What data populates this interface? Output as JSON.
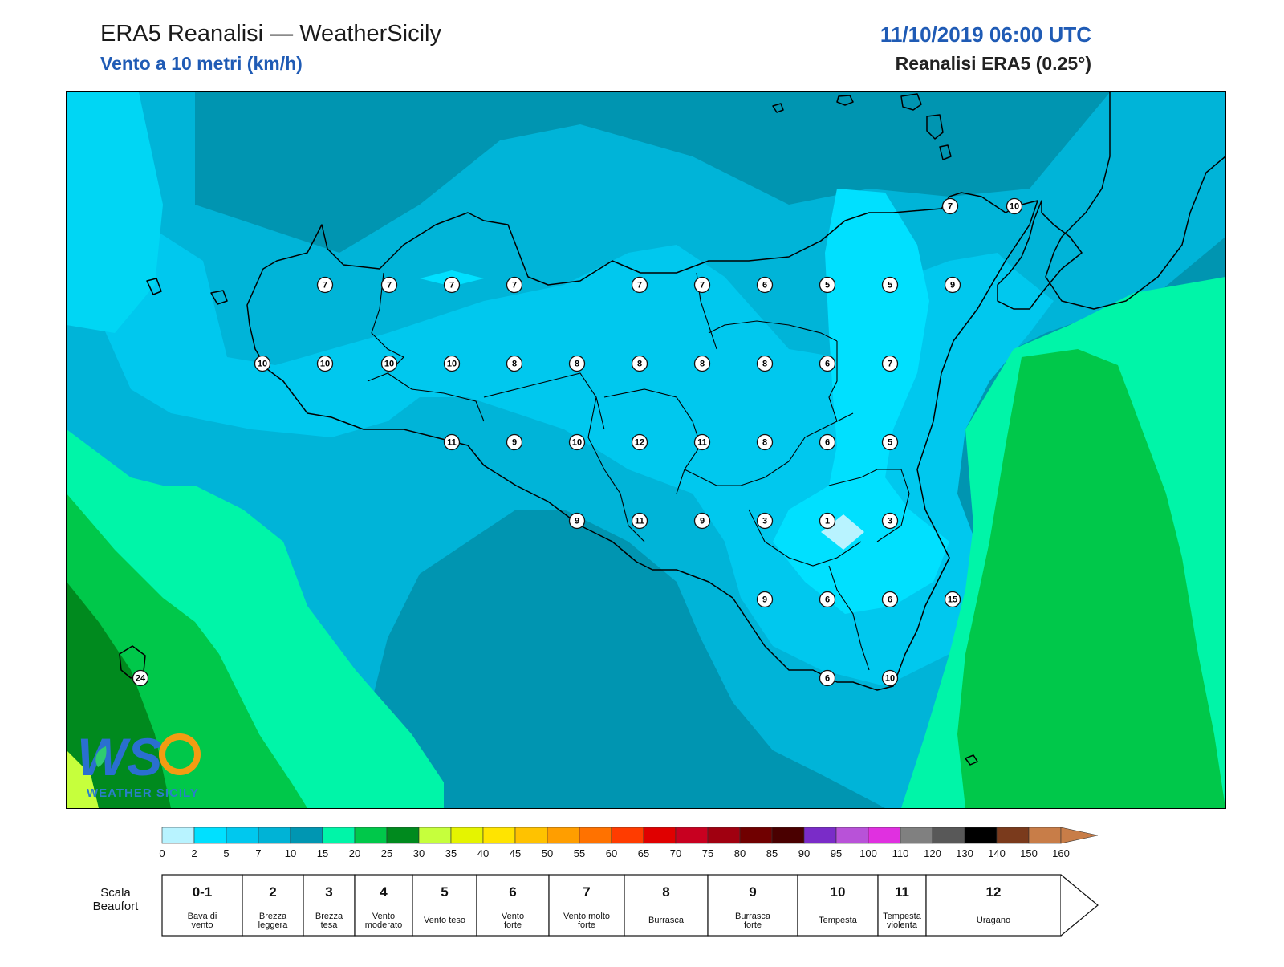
{
  "header": {
    "title": "ERA5 Reanalisi — WeatherSicily",
    "subtitle": "Vento a 10 metri (km/h)",
    "datetime": "11/10/2019 06:00 UTC",
    "dataset": "Reanalisi ERA5 (0.25°)"
  },
  "logo": {
    "text": "WEATHER SICILY",
    "letters": "WS"
  },
  "stations": [
    {
      "v": "7"
    },
    {
      "v": "10"
    },
    {
      "v": "7"
    },
    {
      "v": "7"
    },
    {
      "v": "7"
    },
    {
      "v": "7"
    },
    {
      "v": "7"
    },
    {
      "v": "7"
    },
    {
      "v": "6"
    },
    {
      "v": "5"
    },
    {
      "v": "5"
    },
    {
      "v": "9"
    },
    {
      "v": "10"
    },
    {
      "v": "10"
    },
    {
      "v": "10"
    },
    {
      "v": "10"
    },
    {
      "v": "8"
    },
    {
      "v": "8"
    },
    {
      "v": "8"
    },
    {
      "v": "8"
    },
    {
      "v": "8"
    },
    {
      "v": "6"
    },
    {
      "v": "7"
    },
    {
      "v": "11"
    },
    {
      "v": "9"
    },
    {
      "v": "10"
    },
    {
      "v": "12"
    },
    {
      "v": "11"
    },
    {
      "v": "8"
    },
    {
      "v": "6"
    },
    {
      "v": "5"
    },
    {
      "v": "9"
    },
    {
      "v": "11"
    },
    {
      "v": "9"
    },
    {
      "v": "3"
    },
    {
      "v": "1"
    },
    {
      "v": "3"
    },
    {
      "v": "9"
    },
    {
      "v": "6"
    },
    {
      "v": "6"
    },
    {
      "v": "15"
    },
    {
      "v": "24"
    },
    {
      "v": "6"
    },
    {
      "v": "10"
    }
  ],
  "colorbar": {
    "colors": [
      "#b8f3ff",
      "#00e0ff",
      "#00c8ee",
      "#00b3d6",
      "#0096b2",
      "#00f5a8",
      "#00c84a",
      "#008a1e",
      "#c6ff3c",
      "#e5f400",
      "#ffe400",
      "#ffc200",
      "#ff9e00",
      "#ff7200",
      "#ff3c00",
      "#e00000",
      "#c80020",
      "#a00010",
      "#700000",
      "#4a0000",
      "#7a2cc8",
      "#b852d8",
      "#e030e0",
      "#808080",
      "#585858",
      "#000000",
      "#7a3a1c",
      "#c87d48"
    ],
    "ticks": [
      "0",
      "2",
      "5",
      "7",
      "10",
      "15",
      "20",
      "25",
      "30",
      "35",
      "40",
      "45",
      "50",
      "55",
      "60",
      "65",
      "70",
      "75",
      "80",
      "85",
      "90",
      "95",
      "100",
      "110",
      "120",
      "130",
      "140",
      "150",
      "160"
    ]
  },
  "beaufort": {
    "label": "Scala Beaufort",
    "label_line1": "Scala",
    "label_line2": "Beaufort",
    "classes": [
      {
        "num": "0-1",
        "d1": "Bava di",
        "d2": "vento"
      },
      {
        "num": "2",
        "d1": "Brezza",
        "d2": "leggera"
      },
      {
        "num": "3",
        "d1": "Brezza",
        "d2": "tesa"
      },
      {
        "num": "4",
        "d1": "Vento",
        "d2": "moderato"
      },
      {
        "num": "5",
        "d1": "Vento teso",
        "d2": ""
      },
      {
        "num": "6",
        "d1": "Vento",
        "d2": "forte"
      },
      {
        "num": "7",
        "d1": "Vento molto",
        "d2": "forte"
      },
      {
        "num": "8",
        "d1": "Burrasca",
        "d2": ""
      },
      {
        "num": "9",
        "d1": "Burrasca",
        "d2": "forte"
      },
      {
        "num": "10",
        "d1": "Tempesta",
        "d2": ""
      },
      {
        "num": "11",
        "d1": "Tempesta",
        "d2": "violenta"
      },
      {
        "num": "12",
        "d1": "Uragano",
        "d2": ""
      }
    ]
  }
}
